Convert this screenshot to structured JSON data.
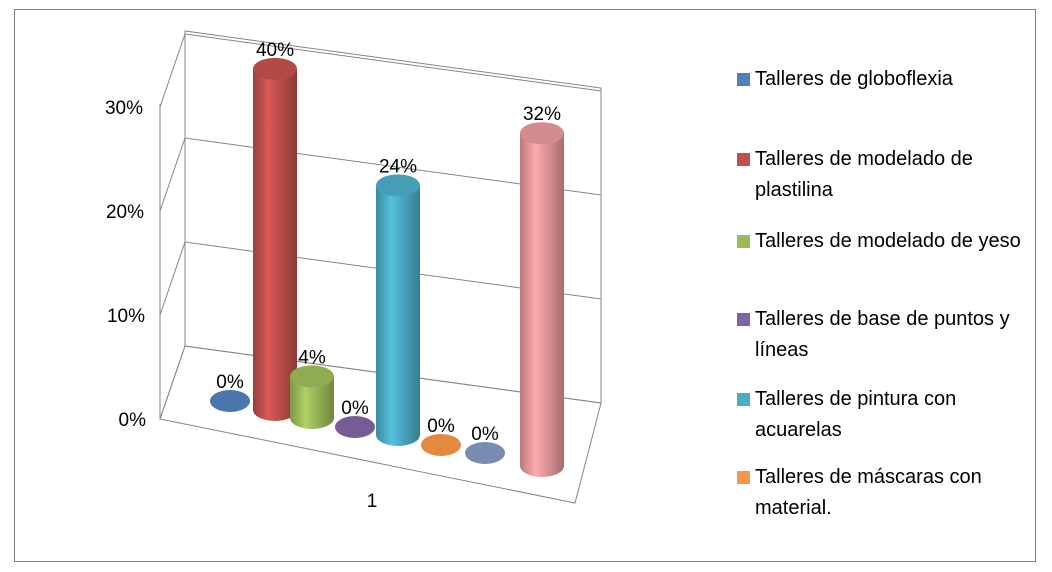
{
  "chart_data": {
    "type": "bar",
    "style": "3d-cylinder",
    "categories": [
      "1"
    ],
    "ylim": [
      0,
      0.3
    ],
    "yticks": [
      {
        "value": 0,
        "label": "0%"
      },
      {
        "value": 0.1,
        "label": "10%"
      },
      {
        "value": 0.2,
        "label": "20%"
      },
      {
        "value": 0.3,
        "label": "30%"
      }
    ],
    "grid": true,
    "legend_position": "right",
    "series": [
      {
        "name": "Talleres de globoflexia",
        "value": 0.0,
        "label": "0%",
        "color": "#4f81bd"
      },
      {
        "name": "Talleres de modelado de plastilina",
        "value": 0.4,
        "label": "40%",
        "color": "#c0504d"
      },
      {
        "name": "Talleres de modelado de yeso",
        "value": 0.04,
        "label": "4%",
        "color": "#9bbb59"
      },
      {
        "name": "Talleres de base de puntos y líneas",
        "value": 0.0,
        "label": "0%",
        "color": "#8064a2"
      },
      {
        "name": "Talleres de pintura con acuarelas",
        "value": 0.24,
        "label": "24%",
        "color": "#4bacc6"
      },
      {
        "name": "Talleres de máscaras con material.",
        "value": 0.0,
        "label": "0%",
        "color": "#f79646"
      },
      {
        "name": "",
        "value": 0.0,
        "label": "0%",
        "color": "#8597c0"
      },
      {
        "name": "",
        "value": 0.32,
        "label": "32%",
        "color": "#e6989a"
      }
    ]
  }
}
